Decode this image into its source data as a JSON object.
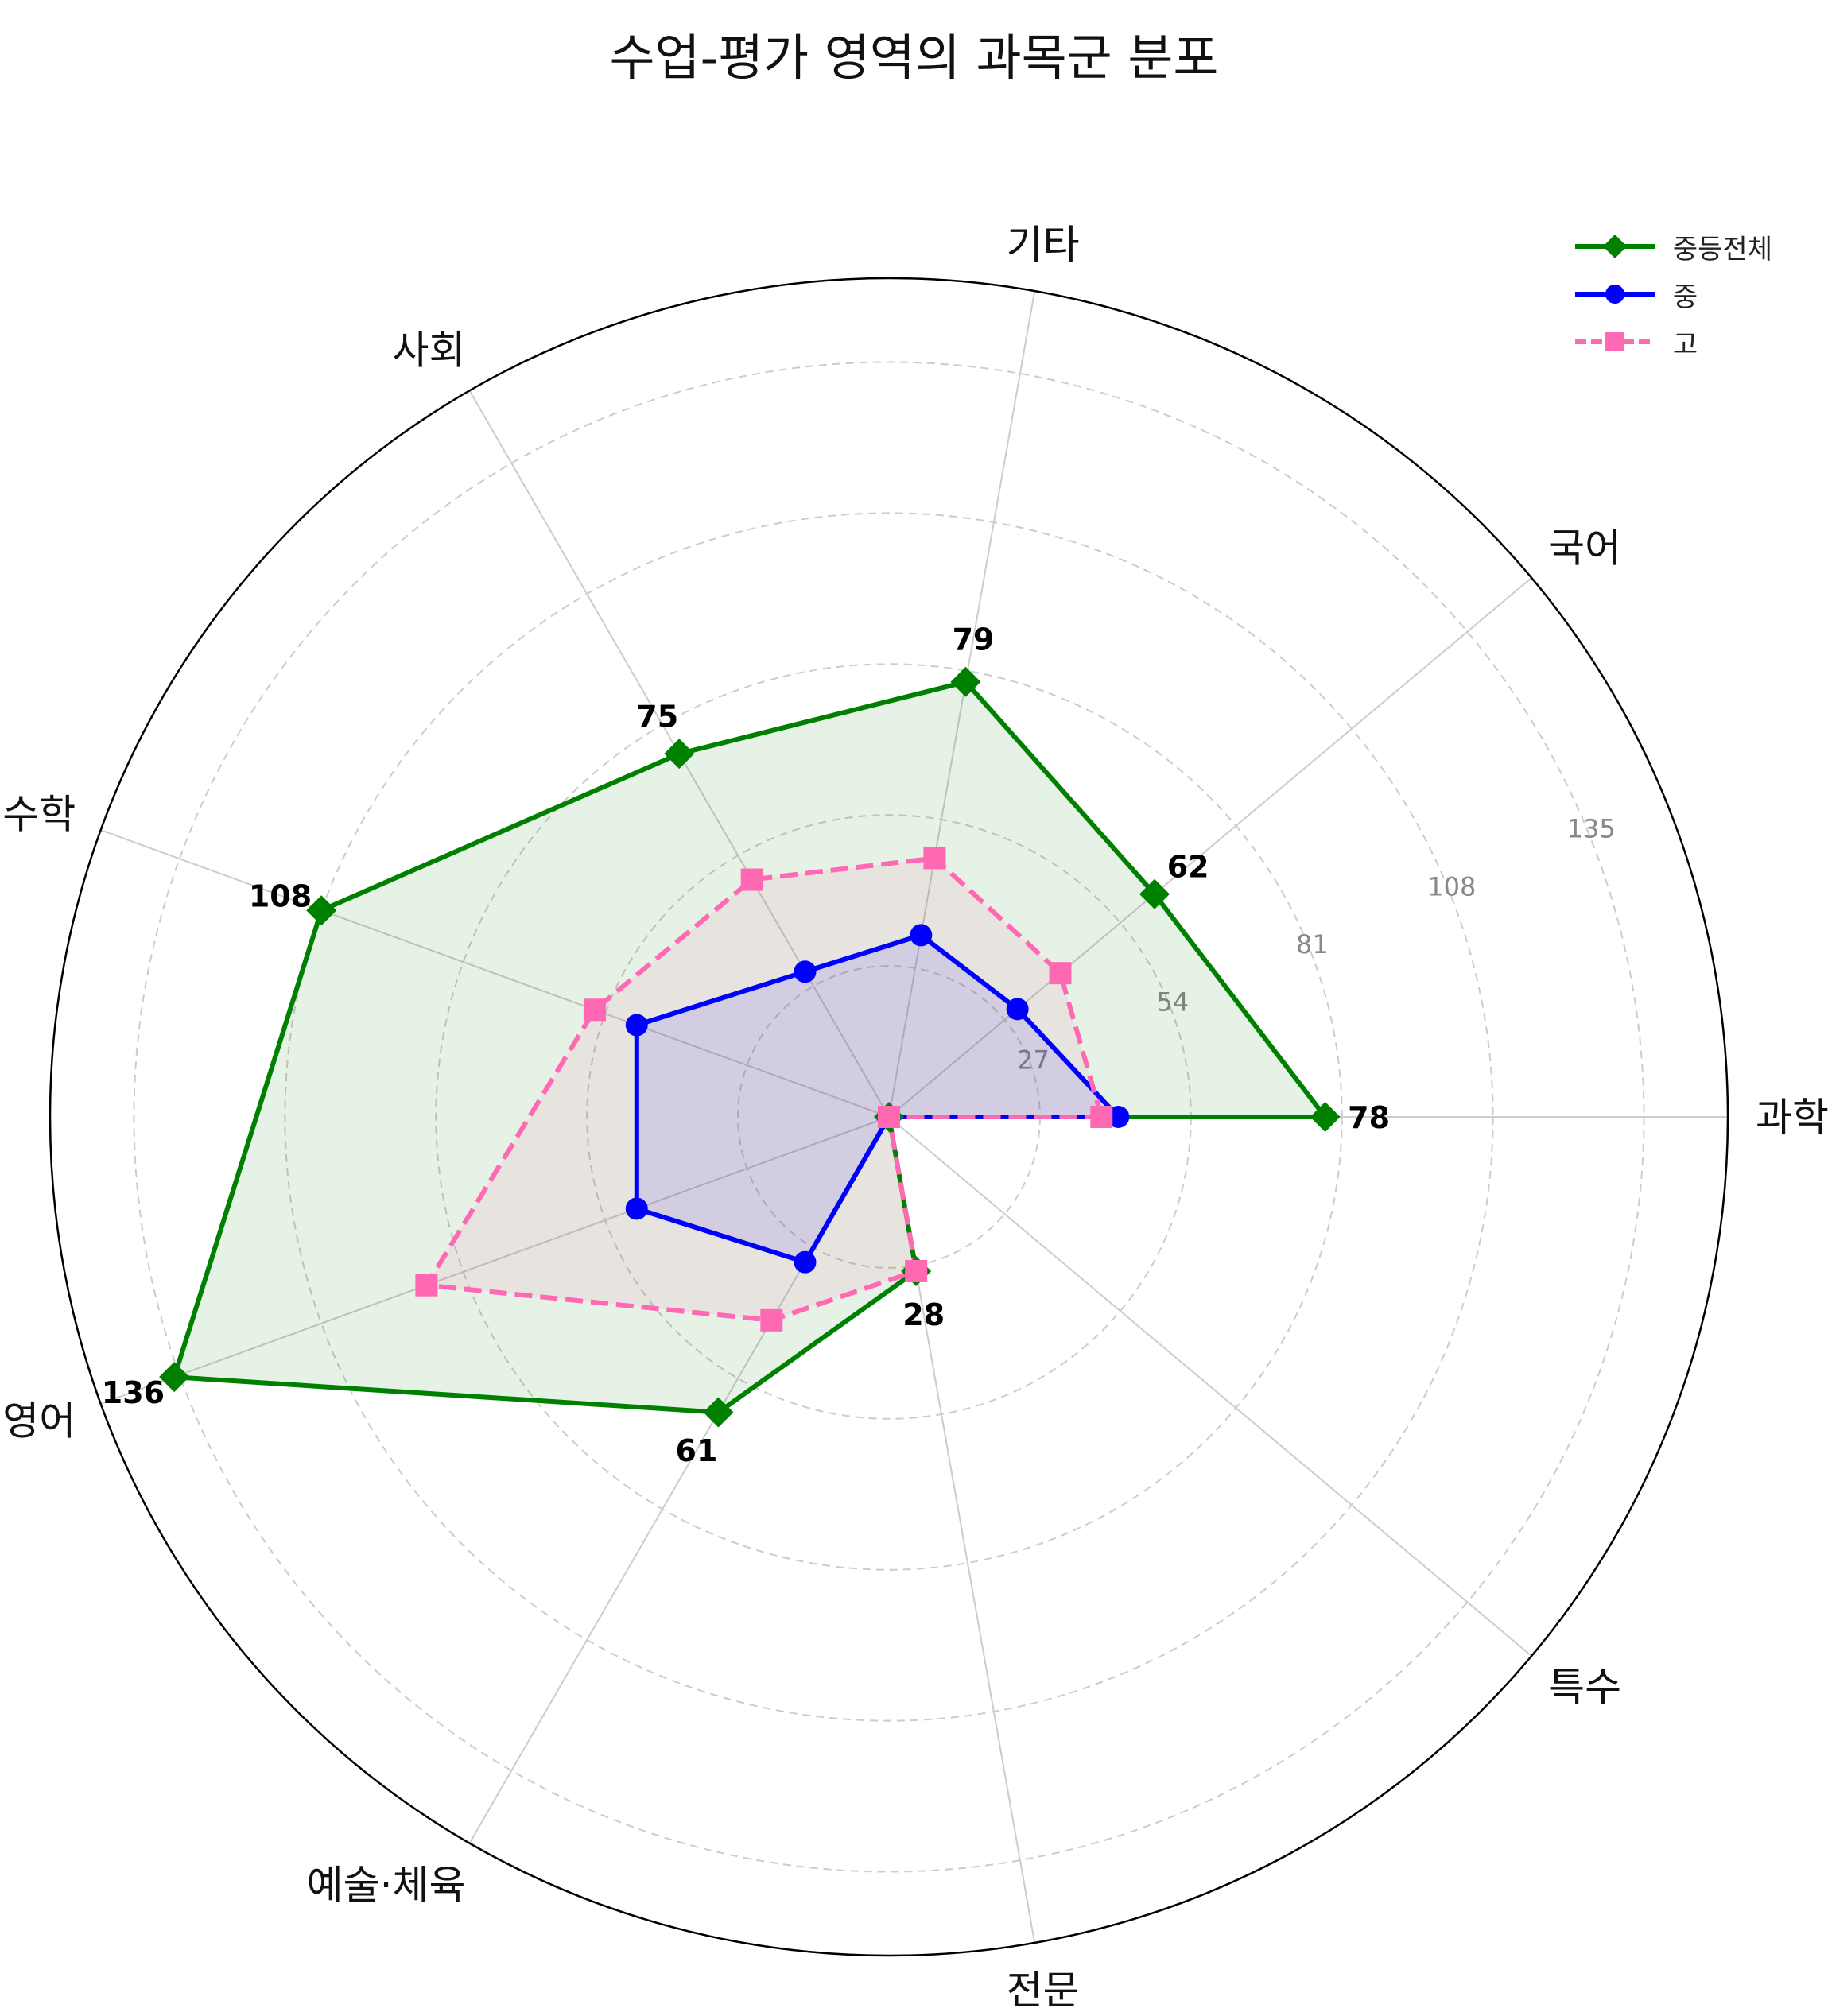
{
  "chart_data": {
    "type": "radar",
    "title": "수업-평가 영역의 과목군 분포",
    "categories": [
      "과학",
      "국어",
      "기타",
      "사회",
      "수학",
      "영어",
      "예술·체육",
      "전문",
      "특수"
    ],
    "rticks": [
      27,
      54,
      81,
      108,
      135
    ],
    "rlim": [
      0,
      150
    ],
    "grid": true,
    "legend": "top-right",
    "series": [
      {
        "name": "중등전체",
        "values": [
          78,
          62,
          79,
          75,
          108,
          136,
          61,
          28,
          0
        ],
        "color": "#008000",
        "marker": "diamond",
        "linestyle": "solid",
        "fill": true,
        "annotate": true
      },
      {
        "name": "중",
        "values": [
          41,
          30,
          33,
          30,
          48,
          48,
          30,
          0,
          0
        ],
        "color": "#0000ff",
        "marker": "circle",
        "linestyle": "solid",
        "fill": true,
        "annotate": false
      },
      {
        "name": "고",
        "values": [
          38,
          40,
          47,
          49,
          56,
          88,
          42,
          28,
          0
        ],
        "color": "#ff69b4",
        "marker": "square",
        "linestyle": "dashed",
        "fill": true,
        "annotate": false
      }
    ]
  }
}
